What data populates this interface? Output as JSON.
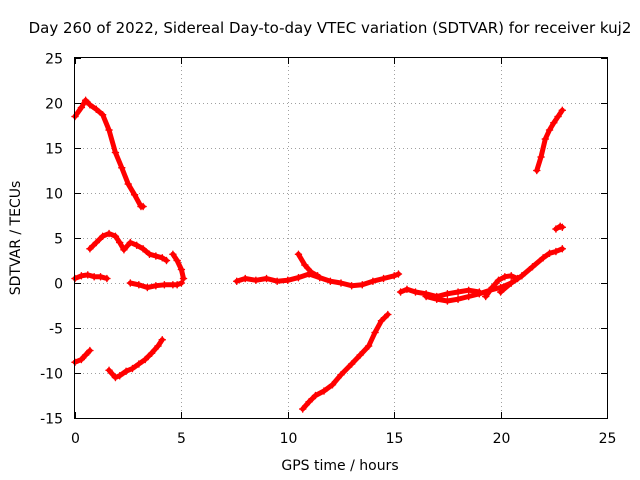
{
  "chart_data": {
    "type": "scatter",
    "title": "Day 260 of 2022, Sidereal Day-to-day VTEC variation (SDTVAR) for receiver kuj2",
    "xlabel": "GPS time / hours",
    "ylabel": "SDTVAR / TECUs",
    "xlim": [
      0,
      25
    ],
    "ylim": [
      -15,
      25
    ],
    "xticks": [
      "0",
      "5",
      "10",
      "15",
      "20",
      "25"
    ],
    "yticks": [
      "-15",
      "-10",
      "-5",
      "0",
      "5",
      "10",
      "15",
      "20",
      "25"
    ],
    "grid": true,
    "marker": "+",
    "color": "#ff0000",
    "series": [
      {
        "name": "s1",
        "x": [
          0.0,
          0.3,
          0.5,
          0.7,
          1.0,
          1.3,
          1.6,
          1.9,
          2.2,
          2.5,
          2.8,
          3.1,
          3.2
        ],
        "y": [
          18.5,
          19.5,
          20.3,
          19.8,
          19.3,
          18.7,
          17.0,
          14.5,
          12.8,
          11.0,
          9.8,
          8.5,
          8.5
        ]
      },
      {
        "name": "s2",
        "x": [
          0.0,
          0.3,
          0.6,
          0.9,
          1.2,
          1.5
        ],
        "y": [
          0.5,
          0.8,
          0.9,
          0.7,
          0.7,
          0.5
        ]
      },
      {
        "name": "s3",
        "x": [
          0.7,
          1.0,
          1.3,
          1.6,
          1.9,
          2.1,
          2.3,
          2.6,
          2.9,
          3.2,
          3.5,
          3.8,
          4.1,
          4.3
        ],
        "y": [
          3.8,
          4.5,
          5.2,
          5.5,
          5.2,
          4.5,
          3.7,
          4.5,
          4.2,
          3.8,
          3.2,
          3.0,
          2.8,
          2.5
        ]
      },
      {
        "name": "s4",
        "x": [
          2.6,
          3.0,
          3.4,
          3.8,
          4.2,
          4.6,
          4.8,
          5.0
        ],
        "y": [
          0.0,
          -0.2,
          -0.5,
          -0.3,
          -0.2,
          -0.2,
          -0.2,
          0.0
        ]
      },
      {
        "name": "s5",
        "x": [
          4.6,
          4.8,
          5.0,
          5.1
        ],
        "y": [
          3.2,
          2.5,
          1.5,
          0.5
        ]
      },
      {
        "name": "s6",
        "x": [
          0.0,
          0.3,
          0.5,
          0.7
        ],
        "y": [
          -8.8,
          -8.5,
          -8.0,
          -7.5
        ]
      },
      {
        "name": "s7",
        "x": [
          1.6,
          1.9,
          2.1,
          2.4,
          2.7,
          3.0,
          3.3,
          3.6,
          3.9,
          4.1
        ],
        "y": [
          -9.7,
          -10.5,
          -10.3,
          -9.8,
          -9.5,
          -9.0,
          -8.5,
          -7.8,
          -7.0,
          -6.3
        ]
      },
      {
        "name": "s8",
        "x": [
          7.6,
          8.0,
          8.5,
          9.0,
          9.5,
          10.0,
          10.5,
          11.0,
          11.5,
          12.0,
          12.5,
          13.0,
          13.5,
          14.0,
          14.5,
          15.0,
          15.2
        ],
        "y": [
          0.2,
          0.5,
          0.3,
          0.5,
          0.2,
          0.3,
          0.6,
          1.0,
          0.6,
          0.2,
          0.0,
          -0.3,
          -0.2,
          0.2,
          0.5,
          0.8,
          1.0
        ]
      },
      {
        "name": "s9",
        "x": [
          10.5,
          10.8,
          11.1,
          11.4
        ],
        "y": [
          3.2,
          2.0,
          1.2,
          0.8
        ]
      },
      {
        "name": "s10",
        "x": [
          10.7,
          11.0,
          11.3,
          11.7,
          12.1,
          12.5,
          13.0,
          13.4,
          13.8,
          14.1,
          14.4,
          14.7
        ],
        "y": [
          -14.0,
          -13.2,
          -12.5,
          -12.0,
          -11.3,
          -10.2,
          -9.0,
          -8.0,
          -7.0,
          -5.5,
          -4.2,
          -3.5
        ]
      },
      {
        "name": "s11",
        "x": [
          15.3,
          15.6,
          16.0,
          16.5,
          17.0,
          17.5,
          18.0,
          18.5,
          19.0
        ],
        "y": [
          -1.0,
          -0.7,
          -1.0,
          -1.2,
          -1.5,
          -1.2,
          -1.0,
          -0.8,
          -1.0
        ]
      },
      {
        "name": "s12",
        "x": [
          16.5,
          17.0,
          17.5,
          18.0,
          18.5,
          19.0,
          19.5,
          20.0,
          20.5
        ],
        "y": [
          -1.5,
          -1.8,
          -2.0,
          -1.8,
          -1.5,
          -1.2,
          -0.8,
          -0.5,
          0.0
        ]
      },
      {
        "name": "s13",
        "x": [
          19.3,
          19.6,
          19.9,
          20.2,
          20.5,
          20.8
        ],
        "y": [
          -1.5,
          -0.5,
          0.3,
          0.7,
          0.8,
          0.5
        ]
      },
      {
        "name": "s14",
        "x": [
          20.0,
          20.5,
          21.0,
          21.5,
          22.0,
          22.3,
          22.6,
          22.9
        ],
        "y": [
          -1.0,
          0.0,
          0.8,
          1.8,
          2.8,
          3.3,
          3.5,
          3.8
        ]
      },
      {
        "name": "s15",
        "x": [
          21.7,
          21.9,
          22.1,
          22.3,
          22.5,
          22.7,
          22.9
        ],
        "y": [
          12.5,
          14.0,
          16.0,
          17.0,
          17.8,
          18.5,
          19.2
        ]
      },
      {
        "name": "s16",
        "x": [
          22.6,
          22.8,
          22.9
        ],
        "y": [
          6.0,
          6.3,
          6.2
        ]
      }
    ]
  }
}
